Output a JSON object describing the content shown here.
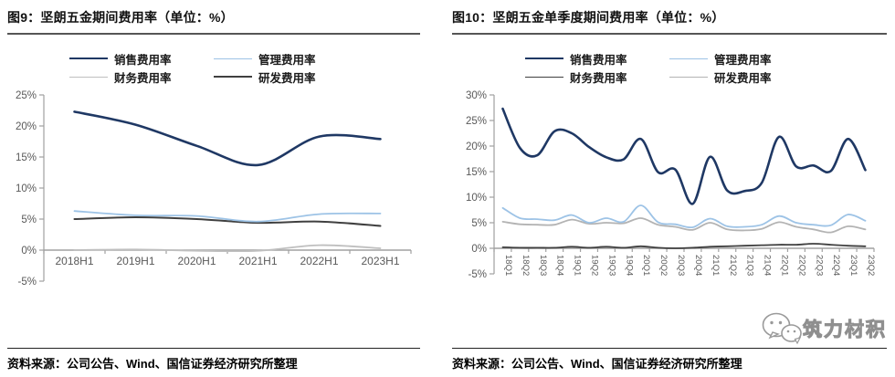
{
  "figures": [
    {
      "id": "figure-9",
      "source": "资料来源：公司公告、Wind、国信证券经济研究所整理"
    },
    {
      "id": "figure-10",
      "source": "资料来源：公司公告、Wind、国信证券经济研究所整理"
    }
  ],
  "watermark": {
    "icon": "wechat-icon",
    "text": "筑力材积"
  },
  "colors": {
    "navy": "#1f3864",
    "light_blue": "#9dc3e6",
    "light_gray": "#bfbfbf",
    "dark_gray": "#404040",
    "axis": "#a0a0a0",
    "tick_label": "#595959"
  },
  "chart_data": [
    {
      "type": "line",
      "title": "图9：坚朗五金期间费用率（单位：%）",
      "xlabel": "",
      "ylabel": "",
      "ylim": [
        -5,
        25
      ],
      "ytick_step": 5,
      "grid": false,
      "legend_position": "top",
      "rotate_x_labels": false,
      "categories": [
        "2018H1",
        "2019H1",
        "2020H1",
        "2021H1",
        "2022H1",
        "2023H1"
      ],
      "series": [
        {
          "name": "销售费用率",
          "color": "#1f3864",
          "width": 2.6,
          "z": 4,
          "values": [
            22.3,
            20.2,
            16.8,
            13.7,
            18.3,
            17.9
          ]
        },
        {
          "name": "管理费用率",
          "color": "#9dc3e6",
          "width": 1.8,
          "z": 3,
          "values": [
            6.3,
            5.6,
            5.5,
            4.6,
            5.8,
            5.9
          ]
        },
        {
          "name": "财务费用率",
          "color": "#bfbfbf",
          "width": 1.8,
          "z": 1,
          "values": [
            0.0,
            0.1,
            -0.1,
            -0.1,
            0.8,
            0.3
          ]
        },
        {
          "name": "研发费用率",
          "color": "#404040",
          "width": 2.0,
          "z": 2,
          "values": [
            5.0,
            5.3,
            5.0,
            4.4,
            4.6,
            3.9
          ]
        }
      ]
    },
    {
      "type": "line",
      "title": "图10：坚朗五金单季度期间费用率（单位：%）",
      "xlabel": "",
      "ylabel": "",
      "ylim": [
        -5,
        30
      ],
      "ytick_step": 5,
      "grid": false,
      "legend_position": "top",
      "rotate_x_labels": true,
      "categories": [
        "18Q1",
        "18Q2",
        "18Q3",
        "18Q4",
        "19Q1",
        "19Q2",
        "19Q3",
        "19Q4",
        "20Q1",
        "20Q2",
        "20Q3",
        "20Q4",
        "21Q1",
        "21Q2",
        "21Q3",
        "21Q4",
        "22Q1",
        "22Q2",
        "22Q3",
        "22Q4",
        "23Q1",
        "23Q2"
      ],
      "series": [
        {
          "name": "销售费用率",
          "color": "#1f3864",
          "width": 2.6,
          "z": 4,
          "values": [
            27.3,
            19.6,
            18.2,
            22.9,
            22.5,
            19.8,
            17.8,
            17.4,
            21.4,
            14.9,
            15.4,
            8.7,
            17.9,
            11.3,
            11.2,
            12.8,
            21.8,
            16.0,
            16.2,
            15.1,
            21.4,
            15.3
          ]
        },
        {
          "name": "管理费用率",
          "color": "#9dc3e6",
          "width": 1.8,
          "z": 3,
          "values": [
            7.9,
            5.9,
            5.7,
            5.5,
            6.5,
            5.0,
            5.9,
            5.2,
            8.4,
            5.1,
            4.7,
            4.1,
            5.8,
            4.3,
            4.2,
            4.6,
            6.3,
            5.0,
            4.6,
            4.5,
            6.6,
            5.4
          ]
        },
        {
          "name": "财务费用率",
          "color": "#404040",
          "width": 1.8,
          "z": 2,
          "values": [
            0.2,
            0.1,
            0.1,
            0.1,
            0.3,
            0.1,
            0.3,
            0.1,
            0.4,
            0.1,
            0.0,
            0.1,
            0.3,
            0.4,
            0.5,
            0.6,
            0.7,
            0.7,
            0.9,
            0.7,
            0.5,
            0.4
          ]
        },
        {
          "name": "研发费用率",
          "color": "#b3b3b3",
          "width": 1.8,
          "z": 1,
          "values": [
            5.2,
            4.7,
            4.6,
            4.6,
            5.6,
            4.8,
            5.0,
            4.9,
            5.9,
            4.6,
            4.2,
            3.6,
            5.0,
            3.7,
            3.5,
            3.8,
            5.1,
            4.2,
            3.7,
            3.1,
            4.3,
            3.7
          ]
        }
      ]
    }
  ]
}
